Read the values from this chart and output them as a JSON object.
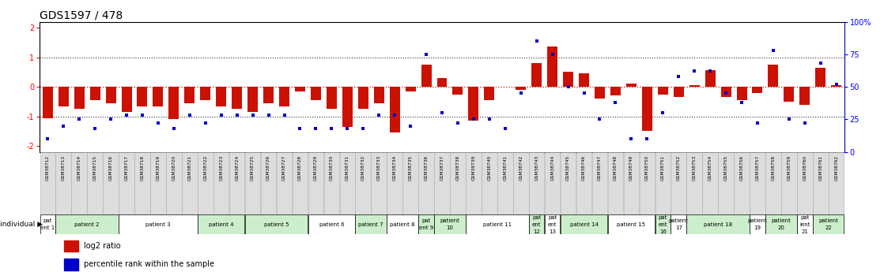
{
  "title": "GDS1597 / 478",
  "samples": [
    "GSM38712",
    "GSM38713",
    "GSM38714",
    "GSM38715",
    "GSM38716",
    "GSM38717",
    "GSM38718",
    "GSM38719",
    "GSM38720",
    "GSM38721",
    "GSM38722",
    "GSM38723",
    "GSM38724",
    "GSM38725",
    "GSM38726",
    "GSM38727",
    "GSM38728",
    "GSM38729",
    "GSM38730",
    "GSM38731",
    "GSM38732",
    "GSM38733",
    "GSM38734",
    "GSM38735",
    "GSM38736",
    "GSM38737",
    "GSM38738",
    "GSM38739",
    "GSM38740",
    "GSM38741",
    "GSM38742",
    "GSM38743",
    "GSM38744",
    "GSM38745",
    "GSM38746",
    "GSM38747",
    "GSM38748",
    "GSM38749",
    "GSM38750",
    "GSM38751",
    "GSM38752",
    "GSM38753",
    "GSM38754",
    "GSM38755",
    "GSM38756",
    "GSM38757",
    "GSM38758",
    "GSM38759",
    "GSM38760",
    "GSM38761",
    "GSM38762"
  ],
  "log2_ratio": [
    -1.05,
    -0.65,
    -0.75,
    -0.45,
    -0.55,
    -0.85,
    -0.65,
    -0.65,
    -1.1,
    -0.55,
    -0.45,
    -0.65,
    -0.75,
    -0.85,
    -0.55,
    -0.65,
    -0.15,
    -0.45,
    -0.75,
    -1.35,
    -0.75,
    -0.55,
    -1.55,
    -0.15,
    0.75,
    0.3,
    -0.25,
    -1.15,
    -0.45,
    0.0,
    -0.1,
    0.8,
    1.35,
    0.5,
    0.45,
    -0.4,
    -0.3,
    0.1,
    -1.5,
    -0.25,
    -0.35,
    0.05,
    0.55,
    -0.35,
    -0.45,
    -0.2,
    0.75,
    -0.5,
    -0.6,
    0.65,
    0.05
  ],
  "percentile": [
    10,
    20,
    25,
    18,
    25,
    28,
    28,
    22,
    18,
    28,
    22,
    28,
    28,
    28,
    28,
    28,
    18,
    18,
    18,
    18,
    18,
    28,
    28,
    20,
    75,
    30,
    22,
    25,
    25,
    18,
    45,
    85,
    75,
    50,
    45,
    25,
    38,
    10,
    10,
    30,
    58,
    62,
    62,
    45,
    38,
    22,
    78,
    25,
    22,
    68,
    52
  ],
  "patients": [
    {
      "label": "pat\nent 1",
      "start": 0,
      "end": 0,
      "color": "#ffffff"
    },
    {
      "label": "patient 2",
      "start": 1,
      "end": 4,
      "color": "#cceecc"
    },
    {
      "label": "patient 3",
      "start": 5,
      "end": 9,
      "color": "#ffffff"
    },
    {
      "label": "patient 4",
      "start": 10,
      "end": 12,
      "color": "#cceecc"
    },
    {
      "label": "patient 5",
      "start": 13,
      "end": 16,
      "color": "#cceecc"
    },
    {
      "label": "patient 6",
      "start": 17,
      "end": 19,
      "color": "#ffffff"
    },
    {
      "label": "patient 7",
      "start": 20,
      "end": 21,
      "color": "#cceecc"
    },
    {
      "label": "patient 8",
      "start": 22,
      "end": 23,
      "color": "#ffffff"
    },
    {
      "label": "pat\nent 9",
      "start": 24,
      "end": 24,
      "color": "#cceecc"
    },
    {
      "label": "patient\n10",
      "start": 25,
      "end": 26,
      "color": "#cceecc"
    },
    {
      "label": "patient 11",
      "start": 27,
      "end": 30,
      "color": "#ffffff"
    },
    {
      "label": "pat\nent\n12",
      "start": 31,
      "end": 31,
      "color": "#cceecc"
    },
    {
      "label": "pat\nent\n13",
      "start": 32,
      "end": 32,
      "color": "#ffffff"
    },
    {
      "label": "patient 14",
      "start": 33,
      "end": 35,
      "color": "#cceecc"
    },
    {
      "label": "patient 15",
      "start": 36,
      "end": 38,
      "color": "#ffffff"
    },
    {
      "label": "pat\nent\n16",
      "start": 39,
      "end": 39,
      "color": "#cceecc"
    },
    {
      "label": "patient\n17",
      "start": 40,
      "end": 40,
      "color": "#ffffff"
    },
    {
      "label": "patient 18",
      "start": 41,
      "end": 44,
      "color": "#cceecc"
    },
    {
      "label": "patient\n19",
      "start": 45,
      "end": 45,
      "color": "#ffffff"
    },
    {
      "label": "patient\n20",
      "start": 46,
      "end": 47,
      "color": "#cceecc"
    },
    {
      "label": "pat\nient\n21",
      "start": 48,
      "end": 48,
      "color": "#ffffff"
    },
    {
      "label": "patient\n22",
      "start": 49,
      "end": 50,
      "color": "#cceecc"
    }
  ],
  "ylim": [
    -2.2,
    2.2
  ],
  "yticks_left": [
    -2,
    -1,
    0,
    1,
    2
  ],
  "yticks_right_perc": [
    0,
    25,
    50,
    75,
    100
  ],
  "bar_color": "#cc1100",
  "dot_color": "#0000cc",
  "bg_color": "#ffffff",
  "title_fontsize": 10,
  "legend_red_label": "log2 ratio",
  "legend_blue_label": "percentile rank within the sample",
  "sample_box_color": "#dddddd",
  "sample_box_edge": "#aaaaaa"
}
